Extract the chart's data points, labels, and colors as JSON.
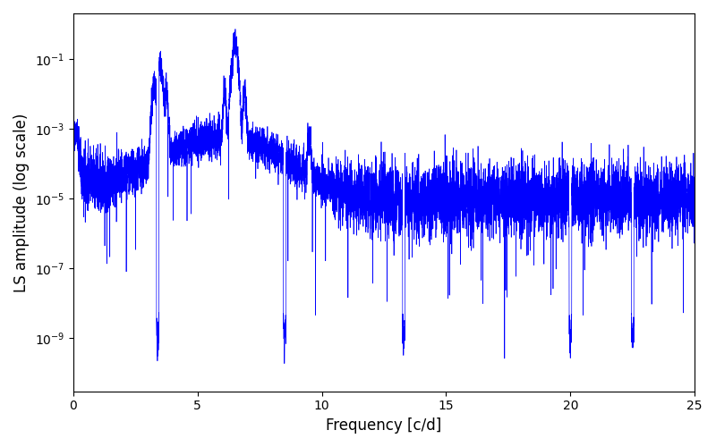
{
  "xlabel": "Frequency [c/d]",
  "ylabel": "LS amplitude (log scale)",
  "line_color": "#0000FF",
  "xlim": [
    0,
    25
  ],
  "ylim": [
    3e-11,
    2.0
  ],
  "yticks": [
    1e-09,
    1e-07,
    1e-05,
    0.001,
    0.1
  ],
  "xticks": [
    0,
    5,
    10,
    15,
    20,
    25
  ],
  "figsize": [
    8.0,
    5.0
  ],
  "dpi": 100,
  "seed": 7,
  "n_points": 8000,
  "freq_max": 25.0,
  "peak1_freq": 3.5,
  "peak1_amp": 0.06,
  "peak2_freq": 6.5,
  "peak2_amp": 0.32,
  "background_color": "#ffffff"
}
